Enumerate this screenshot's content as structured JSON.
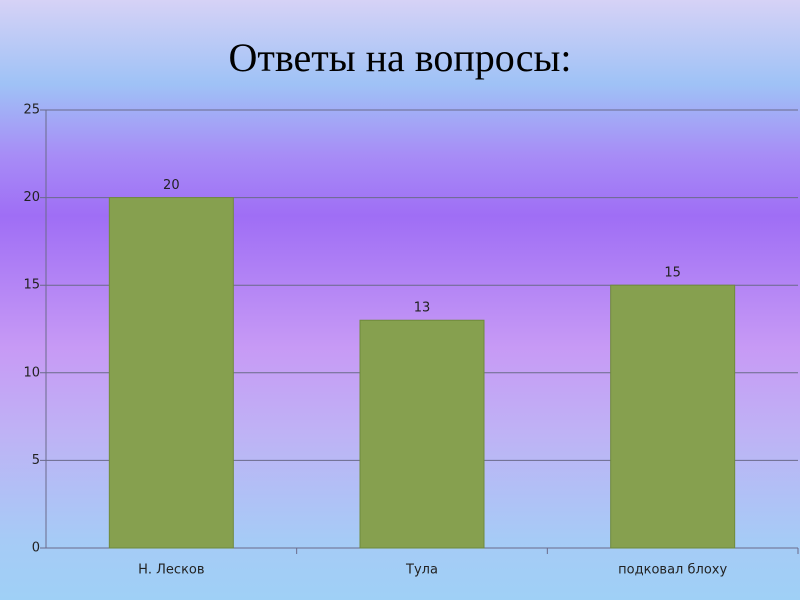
{
  "chart_data": {
    "type": "bar",
    "title": "Ответы на вопросы:",
    "categories": [
      "Н. Лесков",
      "Тула",
      "подковал блоху"
    ],
    "values": [
      20,
      13,
      15
    ],
    "color": "#86a04f",
    "ylim": [
      0,
      25
    ],
    "yticks": [
      0,
      5,
      10,
      15,
      20,
      25
    ],
    "grid": true
  }
}
